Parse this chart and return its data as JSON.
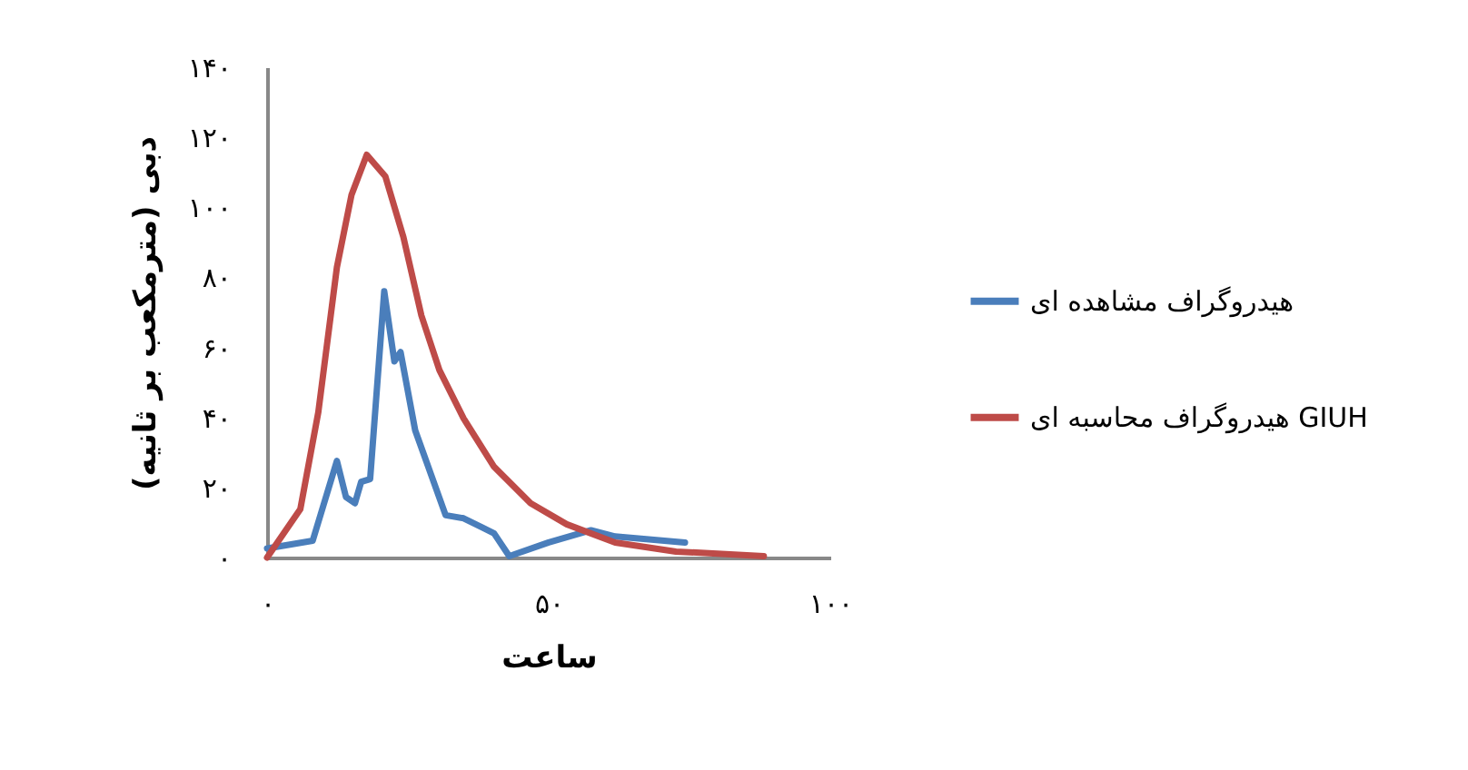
{
  "chart_data": {
    "type": "line",
    "xlabel": "ساعت",
    "ylabel": "دبی (مترمکعب بر ثانیه)",
    "xlim": [
      0,
      100
    ],
    "ylim": [
      0,
      140
    ],
    "xticks": [
      {
        "value": 0,
        "label": "۰"
      },
      {
        "value": 50,
        "label": "۵۰"
      },
      {
        "value": 100,
        "label": "۱۰۰"
      }
    ],
    "yticks": [
      {
        "value": 0,
        "label": "۰"
      },
      {
        "value": 20,
        "label": "۲۰"
      },
      {
        "value": 40,
        "label": "۴۰"
      },
      {
        "value": 60,
        "label": "۶۰"
      },
      {
        "value": 80,
        "label": "۸۰"
      },
      {
        "value": 100,
        "label": "۱۰۰"
      },
      {
        "value": 120,
        "label": "۱۲۰"
      },
      {
        "value": 140,
        "label": "۱۴۰"
      }
    ],
    "grid": false,
    "legend": "right",
    "marker": "none",
    "line_style": "solid",
    "series": [
      {
        "name": "هیدروگراف مشاهده ای",
        "color": "#4a7ebb",
        "x": [
          0,
          8.1,
          12.4,
          14.0,
          15.6,
          16.7,
          18.3,
          20.8,
          22.6,
          23.7,
          26.3,
          31.7,
          34.9,
          38.2,
          40.3,
          43.0,
          50.0,
          57.5,
          61.8,
          74.2
        ],
        "values": [
          2.6,
          4.8,
          27.6,
          17.3,
          15.5,
          21.6,
          22.4,
          76,
          56,
          58.7,
          36.3,
          12.1,
          11.2,
          8.6,
          6.9,
          0.4,
          4.3,
          7.8,
          6.0,
          4.3
        ]
      },
      {
        "name": "هیدروگراف محاسبه ای GIUH",
        "color": "#be4b48",
        "x": [
          0,
          5.9,
          9.1,
          12.4,
          15.0,
          17.7,
          21.0,
          24.2,
          27.4,
          30.6,
          34.9,
          40.3,
          46.8,
          53.2,
          61.8,
          72.6,
          88.2
        ],
        "values": [
          0,
          13.8,
          41.5,
          82.9,
          103.6,
          115,
          108.8,
          91.5,
          69.1,
          53.5,
          39.7,
          25.9,
          15.5,
          9.5,
          4.3,
          1.7,
          0.4
        ]
      }
    ]
  }
}
